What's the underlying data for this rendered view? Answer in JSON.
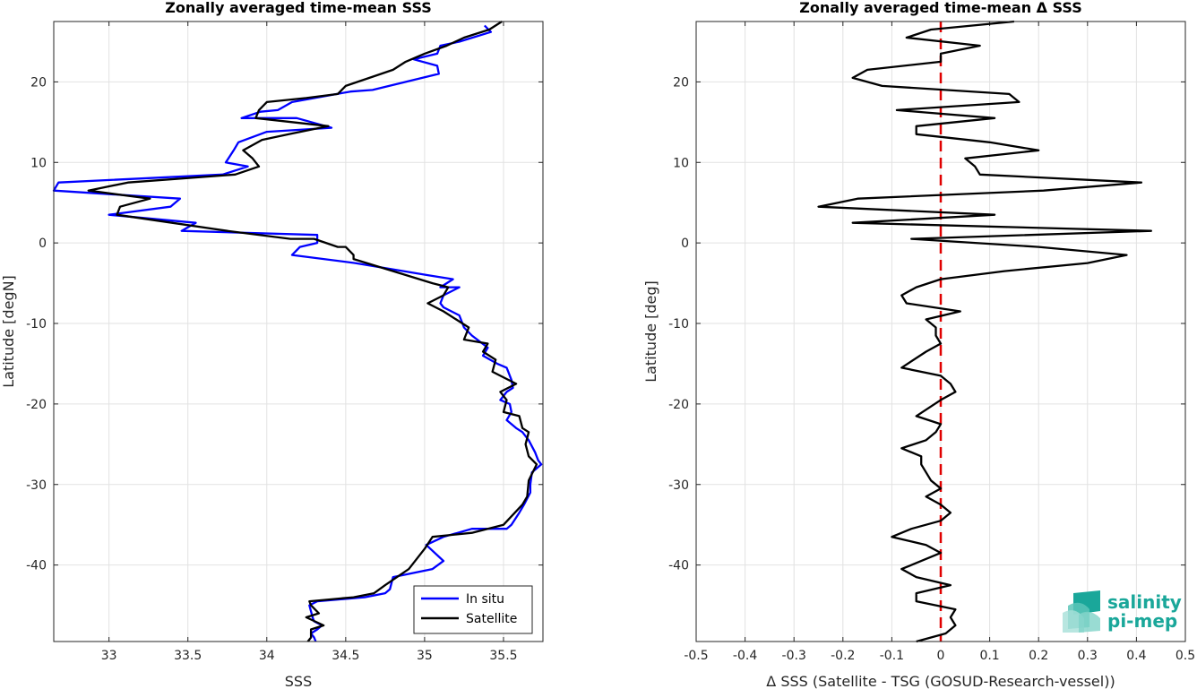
{
  "chart_data": [
    {
      "type": "line",
      "title": "Zonally averaged time-mean SSS",
      "xlabel": "SSS",
      "ylabel": "Latitude [degN]",
      "xlim": [
        32.65,
        35.75
      ],
      "ylim": [
        -49.5,
        27.5
      ],
      "xticks": [
        33,
        33.5,
        34,
        34.5,
        35,
        35.5
      ],
      "yticks": [
        -40,
        -30,
        -20,
        -10,
        0,
        10,
        20
      ],
      "grid": true,
      "legend": {
        "position": "bottom-right",
        "entries": [
          "In situ",
          "Satellite"
        ]
      },
      "series": [
        {
          "name": "In situ",
          "color": "#0000ff",
          "points": [
            [
              35.38,
              27.0
            ],
            [
              35.42,
              26.2
            ],
            [
              35.22,
              25.0
            ],
            [
              35.1,
              24.5
            ],
            [
              35.08,
              23.5
            ],
            [
              34.93,
              22.8
            ],
            [
              35.08,
              22.0
            ],
            [
              35.09,
              21.0
            ],
            [
              34.67,
              19.0
            ],
            [
              34.53,
              18.8
            ],
            [
              34.16,
              17.5
            ],
            [
              34.07,
              16.5
            ],
            [
              33.96,
              16.3
            ],
            [
              33.84,
              15.5
            ],
            [
              34.19,
              15.5
            ],
            [
              34.41,
              14.3
            ],
            [
              34.0,
              13.8
            ],
            [
              33.82,
              12.5
            ],
            [
              33.79,
              11.5
            ],
            [
              33.74,
              10.0
            ],
            [
              33.88,
              9.5
            ],
            [
              33.72,
              8.5
            ],
            [
              32.68,
              7.5
            ],
            [
              32.65,
              6.5
            ],
            [
              33.45,
              5.5
            ],
            [
              33.39,
              4.5
            ],
            [
              33.0,
              3.5
            ],
            [
              33.55,
              2.5
            ],
            [
              33.46,
              1.5
            ],
            [
              34.32,
              1.0
            ],
            [
              34.32,
              0.0
            ],
            [
              34.21,
              -0.5
            ],
            [
              34.16,
              -1.5
            ],
            [
              34.56,
              -2.5
            ],
            [
              35.02,
              -4.0
            ],
            [
              35.18,
              -4.5
            ],
            [
              35.1,
              -5.5
            ],
            [
              35.22,
              -5.5
            ],
            [
              35.12,
              -6.5
            ],
            [
              35.1,
              -7.5
            ],
            [
              35.12,
              -8.0
            ],
            [
              35.22,
              -9.0
            ],
            [
              35.25,
              -10.5
            ],
            [
              35.3,
              -11.5
            ],
            [
              35.4,
              -13.0
            ],
            [
              35.37,
              -14.0
            ],
            [
              35.46,
              -15.0
            ],
            [
              35.52,
              -15.5
            ],
            [
              35.53,
              -16.0
            ],
            [
              35.55,
              -17.0
            ],
            [
              35.56,
              -18.0
            ],
            [
              35.52,
              -18.5
            ],
            [
              35.48,
              -19.5
            ],
            [
              35.54,
              -20.0
            ],
            [
              35.55,
              -21.0
            ],
            [
              35.52,
              -22.0
            ],
            [
              35.58,
              -23.0
            ],
            [
              35.62,
              -23.5
            ],
            [
              35.66,
              -24.5
            ],
            [
              35.7,
              -26.0
            ],
            [
              35.72,
              -27.0
            ],
            [
              35.74,
              -27.5
            ],
            [
              35.68,
              -28.5
            ],
            [
              35.67,
              -30.0
            ],
            [
              35.67,
              -31.0
            ],
            [
              35.63,
              -32.5
            ],
            [
              35.6,
              -33.5
            ],
            [
              35.55,
              -35.0
            ],
            [
              35.52,
              -35.5
            ],
            [
              35.3,
              -35.5
            ],
            [
              35.12,
              -36.5
            ],
            [
              35.01,
              -37.5
            ],
            [
              35.12,
              -39.5
            ],
            [
              35.05,
              -40.5
            ],
            [
              34.8,
              -41.5
            ],
            [
              34.78,
              -43.0
            ],
            [
              34.75,
              -43.5
            ],
            [
              34.62,
              -44.0
            ],
            [
              34.32,
              -44.5
            ],
            [
              34.27,
              -45.0
            ],
            [
              34.29,
              -46.5
            ],
            [
              34.3,
              -47.0
            ],
            [
              34.35,
              -47.5
            ],
            [
              34.32,
              -48.0
            ],
            [
              34.28,
              -48.5
            ],
            [
              34.3,
              -49.0
            ],
            [
              34.31,
              -49.5
            ]
          ]
        },
        {
          "name": "Satellite",
          "color": "#000000",
          "points": [
            [
              35.49,
              27.5
            ],
            [
              35.41,
              26.5
            ],
            [
              35.25,
              25.5
            ],
            [
              35.14,
              24.5
            ],
            [
              35.0,
              23.5
            ],
            [
              34.88,
              22.5
            ],
            [
              34.8,
              21.5
            ],
            [
              34.65,
              20.5
            ],
            [
              34.5,
              19.5
            ],
            [
              34.45,
              18.5
            ],
            [
              34.25,
              18.0
            ],
            [
              34.0,
              17.5
            ],
            [
              33.95,
              16.5
            ],
            [
              33.93,
              15.5
            ],
            [
              34.39,
              14.5
            ],
            [
              34.14,
              13.5
            ],
            [
              33.97,
              12.8
            ],
            [
              33.85,
              11.5
            ],
            [
              33.91,
              10.5
            ],
            [
              33.95,
              9.5
            ],
            [
              33.8,
              8.5
            ],
            [
              33.12,
              7.5
            ],
            [
              32.87,
              6.5
            ],
            [
              33.26,
              5.5
            ],
            [
              33.07,
              4.5
            ],
            [
              33.05,
              3.5
            ],
            [
              33.4,
              2.5
            ],
            [
              33.75,
              1.5
            ],
            [
              34.15,
              0.5
            ],
            [
              34.3,
              0.5
            ],
            [
              34.45,
              -0.5
            ],
            [
              34.5,
              -0.5
            ],
            [
              34.55,
              -1.5
            ],
            [
              34.55,
              -2.0
            ],
            [
              34.8,
              -3.5
            ],
            [
              35.05,
              -5.0
            ],
            [
              35.15,
              -5.5
            ],
            [
              35.12,
              -6.5
            ],
            [
              35.02,
              -7.5
            ],
            [
              35.12,
              -8.5
            ],
            [
              35.2,
              -9.5
            ],
            [
              35.28,
              -10.5
            ],
            [
              35.25,
              -12.0
            ],
            [
              35.4,
              -12.5
            ],
            [
              35.37,
              -13.5
            ],
            [
              35.45,
              -14.5
            ],
            [
              35.43,
              -16.0
            ],
            [
              35.58,
              -17.5
            ],
            [
              35.48,
              -18.5
            ],
            [
              35.52,
              -19.5
            ],
            [
              35.5,
              -21.0
            ],
            [
              35.6,
              -21.5
            ],
            [
              35.62,
              -23.0
            ],
            [
              35.66,
              -23.5
            ],
            [
              35.64,
              -25.0
            ],
            [
              35.66,
              -26.5
            ],
            [
              35.71,
              -27.5
            ],
            [
              35.66,
              -29.5
            ],
            [
              35.65,
              -31.5
            ],
            [
              35.62,
              -32.5
            ],
            [
              35.5,
              -35.0
            ],
            [
              35.3,
              -36.0
            ],
            [
              35.05,
              -36.5
            ],
            [
              35.0,
              -38.0
            ],
            [
              34.9,
              -40.5
            ],
            [
              34.75,
              -42.5
            ],
            [
              34.68,
              -43.5
            ],
            [
              34.55,
              -44.0
            ],
            [
              34.27,
              -44.5
            ],
            [
              34.28,
              -45.0
            ],
            [
              34.33,
              -46.0
            ],
            [
              34.25,
              -46.5
            ],
            [
              34.36,
              -47.5
            ],
            [
              34.28,
              -48.0
            ],
            [
              34.28,
              -49.0
            ],
            [
              34.26,
              -49.5
            ]
          ]
        }
      ]
    },
    {
      "type": "line",
      "title": "Zonally averaged time-mean Δ SSS",
      "xlabel": "Δ SSS (Satellite - TSG (GOSUD-Research-vessel))",
      "ylabel": "Latitude [deg]",
      "xlim": [
        -0.5,
        0.5
      ],
      "ylim": [
        -49.5,
        27.5
      ],
      "xticks": [
        -0.5,
        -0.4,
        -0.3,
        -0.2,
        -0.1,
        0,
        0.1,
        0.2,
        0.3,
        0.4,
        0.5
      ],
      "xtick_labels": [
        "-0.5",
        "-0.4",
        "-0.3",
        "-0.2",
        "-0.1",
        "0",
        "0.1",
        "0.2",
        "0.3",
        "0.4",
        "0.5"
      ],
      "yticks": [
        -40,
        -30,
        -20,
        -10,
        0,
        10,
        20
      ],
      "grid": true,
      "reference_line": {
        "x": 0,
        "color": "#e00000",
        "style": "dashed"
      },
      "series": [
        {
          "color": "#000000",
          "points": [
            [
              0.15,
              27.5
            ],
            [
              -0.02,
              26.5
            ],
            [
              -0.07,
              25.5
            ],
            [
              0.08,
              24.5
            ],
            [
              0.0,
              23.5
            ],
            [
              0.0,
              22.5
            ],
            [
              -0.15,
              21.5
            ],
            [
              -0.18,
              20.5
            ],
            [
              -0.12,
              19.5
            ],
            [
              0.14,
              18.5
            ],
            [
              0.16,
              17.5
            ],
            [
              -0.09,
              16.5
            ],
            [
              0.11,
              15.5
            ],
            [
              -0.05,
              14.5
            ],
            [
              -0.05,
              13.5
            ],
            [
              0.1,
              12.5
            ],
            [
              0.2,
              11.5
            ],
            [
              0.05,
              10.5
            ],
            [
              0.07,
              9.5
            ],
            [
              0.08,
              8.5
            ],
            [
              0.41,
              7.5
            ],
            [
              0.21,
              6.5
            ],
            [
              -0.17,
              5.5
            ],
            [
              -0.25,
              4.5
            ],
            [
              0.11,
              3.5
            ],
            [
              -0.18,
              2.5
            ],
            [
              0.43,
              1.5
            ],
            [
              -0.06,
              0.5
            ],
            [
              0.2,
              -0.5
            ],
            [
              0.38,
              -1.5
            ],
            [
              0.3,
              -2.5
            ],
            [
              0.13,
              -3.5
            ],
            [
              0.0,
              -4.5
            ],
            [
              -0.05,
              -5.5
            ],
            [
              -0.08,
              -6.5
            ],
            [
              -0.07,
              -7.5
            ],
            [
              0.04,
              -8.5
            ],
            [
              -0.03,
              -9.5
            ],
            [
              -0.01,
              -10.5
            ],
            [
              -0.01,
              -11.5
            ],
            [
              0.0,
              -12.5
            ],
            [
              -0.03,
              -13.5
            ],
            [
              -0.08,
              -15.5
            ],
            [
              0.0,
              -16.5
            ],
            [
              0.02,
              -17.5
            ],
            [
              0.03,
              -18.5
            ],
            [
              0.0,
              -19.5
            ],
            [
              -0.05,
              -21.5
            ],
            [
              0.0,
              -22.5
            ],
            [
              -0.01,
              -23.5
            ],
            [
              -0.03,
              -24.5
            ],
            [
              -0.08,
              -25.5
            ],
            [
              -0.04,
              -26.5
            ],
            [
              -0.04,
              -27.5
            ],
            [
              -0.02,
              -29.5
            ],
            [
              0.0,
              -30.5
            ],
            [
              -0.03,
              -31.5
            ],
            [
              0.0,
              -32.5
            ],
            [
              0.02,
              -33.5
            ],
            [
              0.0,
              -34.5
            ],
            [
              -0.06,
              -35.5
            ],
            [
              -0.1,
              -36.5
            ],
            [
              -0.03,
              -37.5
            ],
            [
              0.0,
              -38.5
            ],
            [
              -0.04,
              -39.5
            ],
            [
              -0.08,
              -40.5
            ],
            [
              -0.05,
              -41.5
            ],
            [
              0.02,
              -42.5
            ],
            [
              -0.05,
              -43.5
            ],
            [
              -0.05,
              -44.5
            ],
            [
              0.03,
              -45.5
            ],
            [
              0.02,
              -46.5
            ],
            [
              0.03,
              -47.5
            ],
            [
              0.01,
              -48.5
            ],
            [
              -0.05,
              -49.5
            ]
          ]
        }
      ]
    }
  ],
  "logo": {
    "line1": "salinity",
    "line2": "pi-mep"
  }
}
